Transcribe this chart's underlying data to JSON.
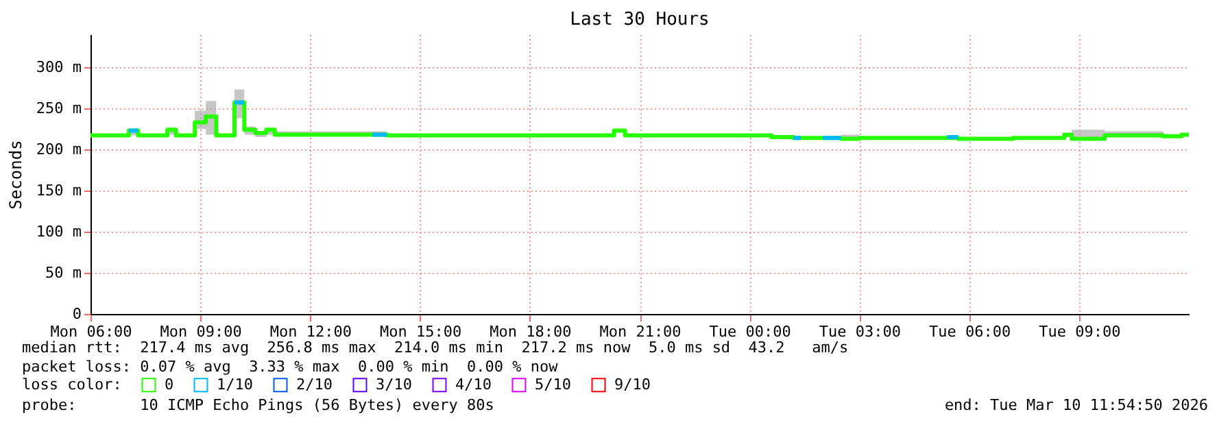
{
  "chart_data": {
    "type": "step",
    "title": "Last 30 Hours",
    "ylabel": "Seconds",
    "legend_title": "loss color:",
    "xlim": [
      "2026-03-09T06:00",
      "2026-03-10T12:00"
    ],
    "xticks": [
      {
        "value": "2026-03-09T06:00",
        "label": "Mon 06:00"
      },
      {
        "value": "2026-03-09T09:00",
        "label": "Mon 09:00"
      },
      {
        "value": "2026-03-09T12:00",
        "label": "Mon 12:00"
      },
      {
        "value": "2026-03-09T15:00",
        "label": "Mon 15:00"
      },
      {
        "value": "2026-03-09T18:00",
        "label": "Mon 18:00"
      },
      {
        "value": "2026-03-09T21:00",
        "label": "Mon 21:00"
      },
      {
        "value": "2026-03-10T00:00",
        "label": "Tue 00:00"
      },
      {
        "value": "2026-03-10T03:00",
        "label": "Tue 03:00"
      },
      {
        "value": "2026-03-10T06:00",
        "label": "Tue 06:00"
      },
      {
        "value": "2026-03-10T09:00",
        "label": "Tue 09:00"
      }
    ],
    "ylim": [
      0,
      340
    ],
    "yticks": [
      0,
      {
        "value": 50,
        "label": "50 m"
      },
      {
        "value": 100,
        "label": "100 m"
      },
      {
        "value": 150,
        "label": "150 m"
      },
      {
        "value": 200,
        "label": "200 m"
      },
      {
        "value": 250,
        "label": "250 m"
      },
      {
        "value": 300,
        "label": "300 m"
      }
    ],
    "grid": true,
    "legend": "bottom",
    "marker": "none",
    "line_style": "solid",
    "series": [
      {
        "name": "0",
        "color": "#26ff00",
        "x": [
          "2026-03-09T06:00",
          "2026-03-09T07:03",
          "2026-03-09T07:18",
          "2026-03-09T08:06",
          "2026-03-09T08:20",
          "2026-03-09T08:51",
          "2026-03-09T09:09",
          "2026-03-09T09:26",
          "2026-03-09T09:56",
          "2026-03-09T10:12",
          "2026-03-09T10:30",
          "2026-03-09T10:48",
          "2026-03-09T11:02",
          "2026-03-09T14:06",
          "2026-03-09T20:18",
          "2026-03-09T20:36",
          "2026-03-10T00:36",
          "2026-03-10T01:12",
          "2026-03-10T02:30",
          "2026-03-10T03:00",
          "2026-03-10T05:42",
          "2026-03-10T07:12",
          "2026-03-10T08:36",
          "2026-03-10T08:48",
          "2026-03-10T09:42",
          "2026-03-10T11:18",
          "2026-03-10T11:48",
          "2026-03-10T12:00"
        ],
        "values": [
          217,
          223,
          217,
          224,
          217,
          233,
          240,
          217,
          257,
          224,
          220,
          224,
          218,
          217,
          223,
          217,
          215,
          214,
          213,
          214,
          213,
          214,
          218,
          213,
          217,
          216,
          218,
          218
        ],
        "lower": [
          217,
          217,
          217,
          218,
          217,
          225,
          218,
          217,
          238,
          218,
          215,
          218,
          217,
          217,
          223,
          217,
          215,
          214,
          213,
          214,
          213,
          214,
          215,
          213,
          215,
          216,
          218,
          218
        ],
        "upper": [
          217,
          224,
          217,
          226,
          217,
          247,
          259,
          217,
          273,
          228,
          222,
          226,
          222,
          217,
          223,
          217,
          215,
          214,
          218,
          214,
          213,
          214,
          220,
          224,
          222,
          216,
          218,
          218
        ]
      },
      {
        "name": "1/10",
        "color": "#00b8ff",
        "x": [
          "2026-03-09T07:03",
          "2026-03-09T07:18",
          "2026-03-09T08:00",
          "2026-03-09T09:56",
          "2026-03-09T10:12",
          "2026-03-09T11:00",
          "2026-03-09T13:42",
          "2026-03-09T14:06",
          "2026-03-09T15:00",
          "2026-03-10T01:12",
          "2026-03-10T01:24",
          "2026-03-10T01:40",
          "2026-03-10T02:00",
          "2026-03-10T02:30",
          "2026-03-10T04:00",
          "2026-03-10T05:24",
          "2026-03-10T05:42"
        ],
        "values": [
          223,
          223,
          null,
          257,
          257,
          null,
          218,
          218,
          null,
          214,
          214,
          null,
          214,
          214,
          null,
          215,
          215
        ]
      },
      {
        "name": "2/10",
        "color": "#0059ff"
      },
      {
        "name": "3/10",
        "color": "#5e00ff"
      },
      {
        "name": "4/10",
        "color": "#7e00ff"
      },
      {
        "name": "5/10",
        "color": "#dd00ff"
      },
      {
        "name": "9/10",
        "color": "#ff0000"
      }
    ],
    "annotations": [
      "median rtt:  217.4 ms avg  256.8 ms max  214.0 ms min  217.2 ms now  5.0 ms sd  43.2   am/s",
      "packet loss: 0.07 % avg  3.33 % max  0.00 % min  0.00 % now",
      "probe:       10 ICMP Echo Pings (56 Bytes) every 80s",
      "end: Tue Mar 10 11:54:50 2026"
    ]
  }
}
